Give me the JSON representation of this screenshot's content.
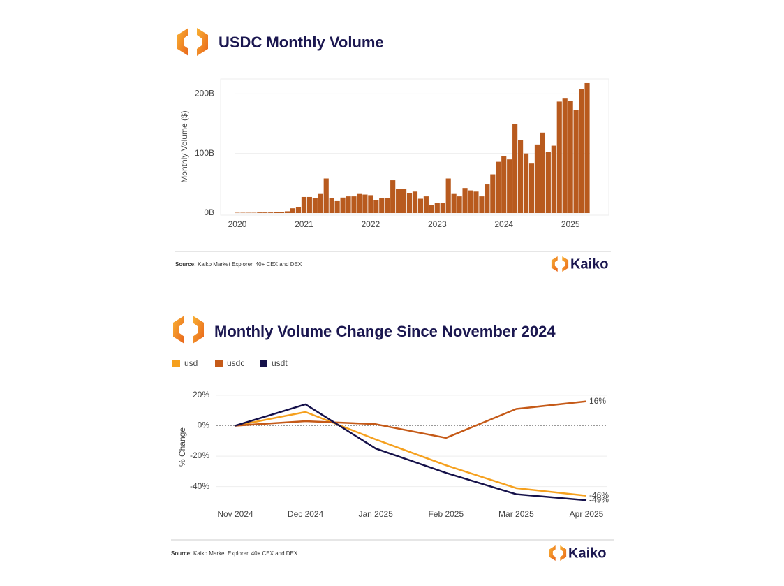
{
  "chart_data": [
    {
      "type": "bar",
      "title": "USDC Monthly Volume",
      "y_label": "Monthly Volume ($)",
      "categories": [
        "2020",
        null,
        null,
        null,
        null,
        null,
        null,
        null,
        null,
        null,
        null,
        null,
        "2021",
        null,
        null,
        null,
        null,
        null,
        null,
        null,
        null,
        null,
        null,
        null,
        "2022",
        null,
        null,
        null,
        null,
        null,
        null,
        null,
        null,
        null,
        null,
        null,
        "2023",
        null,
        null,
        null,
        null,
        null,
        null,
        null,
        null,
        null,
        null,
        null,
        "2024",
        null,
        null,
        null,
        null,
        null,
        null,
        null,
        null,
        null,
        null,
        null,
        "2025",
        null,
        null,
        null
      ],
      "values": [
        0.5,
        0.5,
        0.5,
        0.5,
        1,
        1,
        1,
        1.5,
        2,
        3,
        8,
        10,
        27,
        27,
        25,
        32,
        58,
        25,
        20,
        26,
        28,
        28,
        32,
        31,
        30,
        22,
        25,
        25,
        55,
        40,
        40,
        33,
        36,
        24,
        28,
        13,
        17,
        17,
        58,
        32,
        28,
        42,
        38,
        36,
        28,
        48,
        65,
        86,
        95,
        90,
        150,
        123,
        100,
        83,
        115,
        135,
        102,
        113,
        187,
        192,
        188,
        173,
        208,
        218
      ],
      "color": "#b85a1e",
      "ylim": [
        0,
        225
      ],
      "yticks": [
        {
          "value": 0,
          "label": "0B"
        },
        {
          "value": 100,
          "label": "100B"
        },
        {
          "value": 200,
          "label": "200B"
        }
      ],
      "grid": true,
      "source_label": "Source:",
      "source": "Kaiko Market Explorer. 40+ CEX and DEX",
      "brand": "Kaiko"
    },
    {
      "type": "line",
      "title": "Monthly Volume Change Since November 2024",
      "y_label": "% Change",
      "categories": [
        "Nov 2024",
        "Dec 2024",
        "Jan 2025",
        "Feb 2025",
        "Mar 2025",
        "Apr 2025"
      ],
      "series": [
        {
          "name": "usd",
          "color": "#f5a01e",
          "values": [
            0,
            9,
            -9,
            -26,
            -41,
            -46
          ],
          "value_labels": [
            null,
            null,
            null,
            null,
            null,
            "-46%"
          ]
        },
        {
          "name": "usdc",
          "color": "#c55a18",
          "values": [
            0,
            3,
            1,
            -8,
            11,
            16
          ],
          "value_labels": [
            null,
            null,
            null,
            null,
            null,
            "16%"
          ]
        },
        {
          "name": "usdt",
          "color": "#15114a",
          "values": [
            0,
            14,
            -15,
            -31,
            -45,
            -49
          ],
          "value_labels": [
            null,
            null,
            null,
            null,
            null,
            "-49%"
          ]
        }
      ],
      "ylim": [
        -53,
        25
      ],
      "yticks": [
        {
          "value": 20,
          "label": "20%"
        },
        {
          "value": 0,
          "label": "0%"
        },
        {
          "value": -20,
          "label": "-20%"
        },
        {
          "value": -40,
          "label": "-40%"
        }
      ],
      "grid": true,
      "legend": "top-left",
      "source_label": "Source:",
      "source": "Kaiko Market Explorer. 40+ CEX and DEX",
      "brand": "Kaiko"
    }
  ]
}
